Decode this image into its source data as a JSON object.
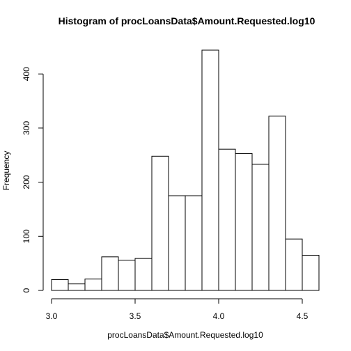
{
  "chart_data": {
    "type": "bar",
    "title": "Histogram of procLoansData$Amount.Requested.log10",
    "xlabel": "procLoansData$Amount.Requested.log10",
    "ylabel": "Frequency",
    "bin_edges": [
      3.0,
      3.1,
      3.2,
      3.3,
      3.4,
      3.5,
      3.6,
      3.7,
      3.8,
      3.9,
      4.0,
      4.1,
      4.2,
      4.3,
      4.4,
      4.5,
      4.6
    ],
    "values": [
      20,
      12,
      21,
      62,
      56,
      59,
      248,
      175,
      175,
      444,
      261,
      253,
      233,
      322,
      95,
      65
    ],
    "xlim": [
      3.0,
      4.6
    ],
    "ylim": [
      0,
      444
    ],
    "x_ticks": [
      3.0,
      3.5,
      4.0,
      4.5
    ],
    "x_tick_labels": [
      "3.0",
      "3.5",
      "4.0",
      "4.5"
    ],
    "y_ticks": [
      0,
      100,
      200,
      300,
      400
    ],
    "y_tick_labels": [
      "0",
      "100",
      "200",
      "300",
      "400"
    ],
    "grid": false,
    "legend": "none"
  }
}
